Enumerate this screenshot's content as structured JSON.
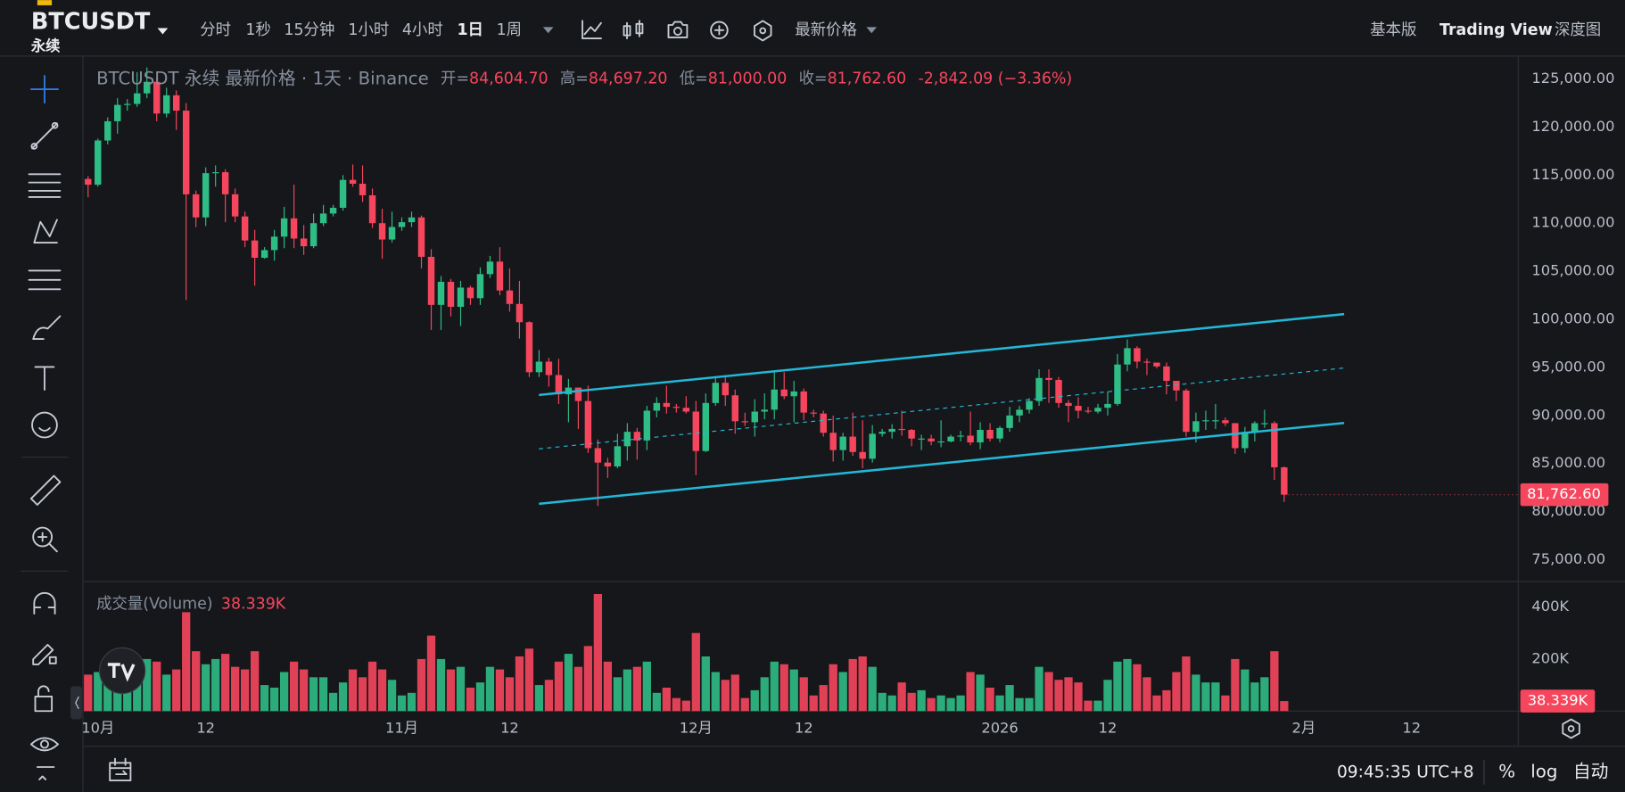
{
  "toolbar": {
    "symbol": "BTCUSDT",
    "contract": "永续",
    "intervals": [
      "分时",
      "1秒",
      "15分钟",
      "1小时",
      "4小时",
      "1日",
      "1周"
    ],
    "price_type": "最新价格",
    "views": [
      "基本版",
      "Trading View",
      "深度图"
    ]
  },
  "chart_data": {
    "type": "candlestick",
    "legend": {
      "title": "BTCUSDT 永续 最新价格 · 1天 · Binance",
      "items": [
        {
          "label": "开=",
          "value": "84,604.70"
        },
        {
          "label": "高=",
          "value": "84,697.20"
        },
        {
          "label": "低=",
          "value": "81,000.00"
        },
        {
          "label": "收=",
          "value": "81,762.60"
        }
      ],
      "change": "-2,842.09 (−3.36%)"
    },
    "up_color": "#2ebd85",
    "down_color": "#f6465d",
    "categories": [
      "09-30",
      "10-01",
      "10-02",
      "10-03",
      "10-04",
      "10-05",
      "10-06",
      "10-07",
      "10-08",
      "10-09",
      "10-10",
      "10-11",
      "10-12",
      "10-13",
      "10-14",
      "10-15",
      "10-16",
      "10-17",
      "10-18",
      "10-19",
      "10-20",
      "10-21",
      "10-22",
      "10-23",
      "10-24",
      "10-25",
      "10-26",
      "10-27",
      "10-28",
      "10-29",
      "10-30",
      "10-31",
      "11-01",
      "11-02",
      "11-03",
      "11-04",
      "11-05",
      "11-06",
      "11-07",
      "11-08",
      "11-09",
      "11-10",
      "11-11",
      "11-12",
      "11-13",
      "11-14",
      "11-15",
      "11-16",
      "11-17",
      "11-18",
      "11-19",
      "11-20",
      "11-21",
      "11-22",
      "11-23",
      "11-24",
      "11-25",
      "11-26",
      "11-27",
      "11-28",
      "11-29",
      "11-30",
      "12-01",
      "12-02",
      "12-03",
      "12-04",
      "12-05",
      "12-06",
      "12-07",
      "12-08",
      "12-09",
      "12-10",
      "12-11",
      "12-12",
      "12-13",
      "12-14",
      "12-15",
      "12-16",
      "12-17",
      "12-18",
      "12-19",
      "12-20",
      "12-21",
      "12-22",
      "12-23",
      "12-24",
      "12-25",
      "12-26",
      "12-27",
      "12-28",
      "12-29",
      "12-30",
      "12-31",
      "01-01",
      "01-02",
      "01-03",
      "01-04",
      "01-05",
      "01-06",
      "01-07",
      "01-08",
      "01-09",
      "01-10",
      "01-11",
      "01-12",
      "01-13",
      "01-14",
      "01-15",
      "01-16",
      "01-17",
      "01-18",
      "01-19",
      "01-20",
      "01-21",
      "01-22",
      "01-23",
      "01-24",
      "01-25",
      "01-26",
      "01-27",
      "01-28",
      "01-29",
      "01-30"
    ],
    "open": [
      114600,
      114000,
      118600,
      120600,
      122300,
      122400,
      123500,
      124700,
      121400,
      123300,
      121700,
      113000,
      110600,
      115200,
      115300,
      113000,
      110700,
      108200,
      106400,
      107200,
      108600,
      110500,
      108400,
      107600,
      110000,
      111000,
      111600,
      114500,
      114100,
      112900,
      110000,
      108300,
      109600,
      110100,
      110600,
      106500,
      101500,
      103900,
      101300,
      103300,
      102200,
      104700,
      106000,
      103000,
      101600,
      99700,
      94500,
      95600,
      94200,
      92200,
      92900,
      91500,
      86600,
      85100,
      84700,
      86800,
      88300,
      87400,
      90500,
      91300,
      90900,
      90800,
      90400,
      86300,
      91300,
      93400,
      92100,
      89400,
      89300,
      90400,
      90600,
      92700,
      92000,
      92500,
      90300,
      90200,
      88200,
      86400,
      87800,
      86200,
      85500,
      88100,
      88300,
      88600,
      88500,
      87600,
      87600,
      87300,
      87300,
      87800,
      87900,
      87200,
      88500,
      87600,
      88700,
      90000,
      90600,
      91500,
      93900,
      93700,
      91300,
      91000,
      90500,
      90400,
      90800,
      91200,
      95300,
      97000,
      95600,
      95500,
      95100,
      93600,
      92600,
      88300,
      89400,
      89500,
      89500,
      89200,
      86600,
      88300,
      89200,
      89200,
      84604.7
    ],
    "high": [
      114900,
      118800,
      121000,
      123000,
      122900,
      125700,
      126200,
      125100,
      124100,
      123800,
      122500,
      113400,
      115800,
      116000,
      115600,
      113600,
      111200,
      109300,
      107500,
      109300,
      111700,
      114000,
      109800,
      111000,
      111900,
      111900,
      115000,
      116100,
      116000,
      113600,
      111500,
      111200,
      110600,
      111200,
      110800,
      107300,
      104500,
      104200,
      104000,
      103500,
      105400,
      106600,
      107500,
      105300,
      104000,
      99800,
      96800,
      96000,
      95900,
      93800,
      92900,
      93100,
      87500,
      85600,
      88100,
      89200,
      88700,
      91000,
      91900,
      93100,
      91200,
      92000,
      91500,
      92300,
      94100,
      94100,
      92700,
      90300,
      91700,
      92300,
      94600,
      94500,
      93600,
      92800,
      90600,
      90500,
      90000,
      88200,
      90300,
      89500,
      89000,
      88600,
      89100,
      90500,
      88600,
      88000,
      88000,
      89500,
      88000,
      88400,
      90400,
      89300,
      89200,
      88900,
      90900,
      91000,
      91800,
      94800,
      94800,
      94000,
      91600,
      91900,
      90900,
      91200,
      92500,
      96400,
      97900,
      97200,
      95900,
      95500,
      95500,
      93600,
      92800,
      90300,
      90500,
      91200,
      89800,
      89200,
      88800,
      89400,
      90600,
      89400,
      84697.2
    ],
    "low": [
      112700,
      113800,
      118200,
      119300,
      121700,
      122100,
      123000,
      120600,
      121000,
      119700,
      102000,
      109600,
      109700,
      113800,
      110100,
      110100,
      107500,
      103500,
      106300,
      106100,
      107400,
      107400,
      106700,
      107400,
      109700,
      110700,
      111300,
      113800,
      112200,
      109500,
      106300,
      108000,
      109200,
      109600,
      105300,
      98900,
      98900,
      100300,
      99300,
      101500,
      101500,
      104300,
      102500,
      100800,
      98000,
      94000,
      94000,
      93000,
      91200,
      89300,
      88600,
      86100,
      80600,
      83500,
      84500,
      85300,
      85400,
      86400,
      89800,
      90200,
      90300,
      90200,
      83800,
      86200,
      91000,
      91000,
      88100,
      88900,
      87800,
      89600,
      89600,
      91700,
      89300,
      89500,
      89800,
      87800,
      85200,
      85300,
      85800,
      84500,
      85100,
      87800,
      87600,
      87900,
      86800,
      86400,
      86900,
      86700,
      87200,
      87300,
      86900,
      86500,
      87300,
      87200,
      88300,
      89300,
      90200,
      91000,
      91300,
      90800,
      89300,
      89700,
      90200,
      90200,
      90000,
      91000,
      94600,
      94900,
      94200,
      94900,
      92200,
      91500,
      87800,
      87200,
      88500,
      88600,
      88900,
      86000,
      86100,
      87300,
      88700,
      83300,
      81000
    ],
    "close": [
      114000,
      118600,
      120600,
      122300,
      122400,
      123500,
      124700,
      121400,
      123300,
      121700,
      113000,
      110600,
      115200,
      115300,
      113000,
      110700,
      108200,
      106400,
      107200,
      108600,
      110500,
      108400,
      107600,
      110000,
      111000,
      111600,
      114500,
      114100,
      112900,
      110000,
      108300,
      109600,
      110100,
      110600,
      106500,
      101500,
      103900,
      101300,
      103300,
      102200,
      104700,
      106000,
      103000,
      101600,
      99700,
      94500,
      95600,
      94200,
      92200,
      92900,
      91500,
      86600,
      85100,
      84700,
      86800,
      88300,
      87400,
      90500,
      91300,
      90900,
      90800,
      90400,
      86300,
      91300,
      93400,
      92100,
      89400,
      89300,
      90400,
      90600,
      92700,
      92000,
      92500,
      90300,
      90200,
      88200,
      86400,
      87800,
      86200,
      85500,
      88100,
      88300,
      88600,
      88500,
      87600,
      87600,
      87300,
      87300,
      87800,
      87900,
      87200,
      88500,
      87600,
      88700,
      90000,
      90600,
      91500,
      93900,
      93700,
      91300,
      91000,
      90500,
      90400,
      90800,
      91200,
      95300,
      97000,
      95600,
      95500,
      95100,
      93600,
      92600,
      88300,
      89400,
      89500,
      89500,
      89200,
      86600,
      88300,
      89200,
      89200,
      84604.7,
      81762.6
    ],
    "ylim": [
      72840,
      127270
    ],
    "yticks": [
      {
        "value": 125000,
        "label": "125,000.00"
      },
      {
        "value": 120000,
        "label": "120,000.00"
      },
      {
        "value": 115000,
        "label": "115,000.00"
      },
      {
        "value": 110000,
        "label": "110,000.00"
      },
      {
        "value": 105000,
        "label": "105,000.00"
      },
      {
        "value": 100000,
        "label": "100,000.00"
      },
      {
        "value": 95000,
        "label": "95,000.00"
      },
      {
        "value": 90000,
        "label": "90,000.00"
      },
      {
        "value": 85000,
        "label": "85,000.00"
      },
      {
        "value": 80000,
        "label": "80,000.00"
      },
      {
        "value": 75000,
        "label": "75,000.00"
      }
    ],
    "price_tag": "81,762.60",
    "xticks": [
      {
        "value": "10-01",
        "label": "10月"
      },
      {
        "value": "10-12",
        "label": "12"
      },
      {
        "value": "11-01",
        "label": "11月"
      },
      {
        "value": "11-12",
        "label": "12"
      },
      {
        "value": "12-01",
        "label": "12月"
      },
      {
        "value": "12-12",
        "label": "12"
      },
      {
        "value": "01-01",
        "label": "2026"
      },
      {
        "value": "01-12",
        "label": "12"
      },
      {
        "value": "02-01",
        "label": "2月"
      },
      {
        "value": "02-12",
        "label": "12"
      }
    ],
    "volume": {
      "label": "成交量(Volume)",
      "value_label": "38.339K",
      "ylim": [
        0,
        494000
      ],
      "yticks": [
        {
          "value": 400000,
          "label": "400K"
        },
        {
          "value": 200000,
          "label": "200K"
        }
      ],
      "values": [
        140000,
        150000,
        170000,
        150000,
        90000,
        130000,
        200000,
        190000,
        140000,
        160000,
        380000,
        230000,
        180000,
        200000,
        220000,
        170000,
        160000,
        230000,
        100000,
        90000,
        150000,
        190000,
        160000,
        130000,
        130000,
        70000,
        110000,
        160000,
        130000,
        190000,
        160000,
        120000,
        60000,
        70000,
        200000,
        290000,
        200000,
        160000,
        170000,
        90000,
        110000,
        170000,
        160000,
        130000,
        210000,
        240000,
        100000,
        120000,
        190000,
        220000,
        170000,
        250000,
        450000,
        190000,
        130000,
        160000,
        170000,
        190000,
        70000,
        90000,
        50000,
        40000,
        300000,
        210000,
        150000,
        120000,
        140000,
        50000,
        80000,
        130000,
        190000,
        180000,
        160000,
        130000,
        60000,
        100000,
        180000,
        150000,
        200000,
        210000,
        170000,
        70000,
        60000,
        110000,
        70000,
        80000,
        50000,
        60000,
        50000,
        60000,
        150000,
        140000,
        90000,
        60000,
        100000,
        50000,
        50000,
        170000,
        150000,
        120000,
        130000,
        110000,
        40000,
        40000,
        120000,
        190000,
        200000,
        180000,
        130000,
        60000,
        80000,
        150000,
        210000,
        140000,
        110000,
        110000,
        60000,
        200000,
        160000,
        110000,
        130000,
        230000,
        38339
      ]
    }
  },
  "footer": {
    "time": "09:45:35 UTC+8",
    "buttons": [
      "%",
      "log",
      "自动"
    ]
  }
}
